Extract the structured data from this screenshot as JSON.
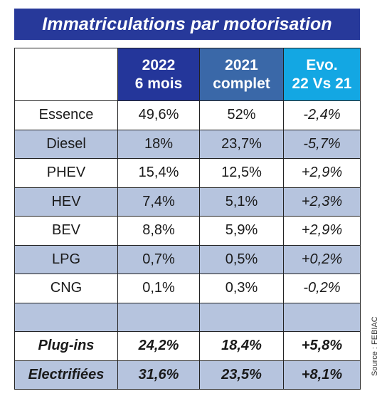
{
  "title": "Immatriculations par motorisation",
  "columns": [
    {
      "line1": "2022",
      "line2": "6 mois"
    },
    {
      "line1": "2021",
      "line2": "complet"
    },
    {
      "line1": "Evo.",
      "line2": "22 Vs 21"
    }
  ],
  "rows": [
    {
      "label": "Essence",
      "v2022": "49,6%",
      "v2021": "52%",
      "evo": "-2,4%"
    },
    {
      "label": "Diesel",
      "v2022": "18%",
      "v2021": "23,7%",
      "evo": "-5,7%"
    },
    {
      "label": "PHEV",
      "v2022": "15,4%",
      "v2021": "12,5%",
      "evo": "+2,9%"
    },
    {
      "label": "HEV",
      "v2022": "7,4%",
      "v2021": "5,1%",
      "evo": "+2,3%"
    },
    {
      "label": "BEV",
      "v2022": "8,8%",
      "v2021": "5,9%",
      "evo": "+2,9%"
    },
    {
      "label": "LPG",
      "v2022": "0,7%",
      "v2021": "0,5%",
      "evo": "+0,2%"
    },
    {
      "label": "CNG",
      "v2022": "0,1%",
      "v2021": "0,3%",
      "evo": "-0,2%"
    }
  ],
  "summary": [
    {
      "label": "Plug-ins",
      "v2022": "24,2%",
      "v2021": "18,4%",
      "evo": "+5,8%"
    },
    {
      "label": "Electrifiées",
      "v2022": "31,6%",
      "v2021": "23,5%",
      "evo": "+8,1%"
    }
  ],
  "source": "Source : FEBIAC",
  "colors": {
    "title_bg": "#27399a",
    "col2022_bg": "#24369a",
    "col2021_bg": "#3a68a8",
    "colevo_bg": "#13a7e3",
    "alt_row_bg": "#b6c4de"
  }
}
